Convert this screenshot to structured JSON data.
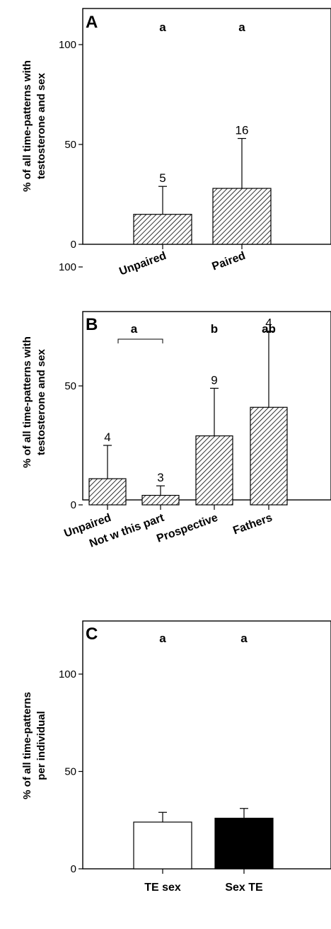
{
  "chart_data": [
    {
      "type": "bar",
      "panel": "A",
      "ylabel_lines": [
        "% of all time-patterns with",
        "testosterone and sex"
      ],
      "ylim": [
        0,
        110
      ],
      "yticks": [
        0,
        50,
        100
      ],
      "categories": [
        "Unpaired",
        "Paired"
      ],
      "values": [
        15,
        28
      ],
      "errors": [
        14,
        25
      ],
      "n_labels": [
        "5",
        "16"
      ],
      "significance": [
        {
          "label": "a",
          "categories": [
            0
          ]
        },
        {
          "label": "a",
          "categories": [
            1
          ]
        }
      ],
      "fill": "hatch"
    },
    {
      "type": "bar",
      "panel": "B",
      "ylabel_lines": [
        "% of all time-patterns with",
        "testosterone and sex"
      ],
      "ylim": [
        0,
        110
      ],
      "yticks": [
        0,
        50,
        100
      ],
      "categories": [
        "Unpaired",
        "Not w this part",
        "Prospective",
        "Fathers"
      ],
      "values": [
        11,
        4,
        29,
        41
      ],
      "errors": [
        14,
        4,
        20,
        32
      ],
      "n_labels": [
        "4",
        "3",
        "9",
        "4"
      ],
      "significance": [
        {
          "label": "a",
          "categories": [
            0,
            1
          ]
        },
        {
          "label": "b",
          "categories": [
            2
          ]
        },
        {
          "label": "ab",
          "categories": [
            3
          ]
        }
      ],
      "fill": "hatch"
    },
    {
      "type": "bar",
      "panel": "C",
      "ylabel_lines": [
        "% of all time-patterns",
        "per individual"
      ],
      "ylim": [
        0,
        110
      ],
      "yticks": [
        0,
        50,
        100
      ],
      "categories": [
        "TE sex",
        "Sex TE"
      ],
      "values": [
        24,
        26
      ],
      "errors": [
        5,
        5
      ],
      "significance": [
        {
          "label": "a",
          "categories": [
            0
          ]
        },
        {
          "label": "a",
          "categories": [
            1
          ]
        }
      ],
      "colors": [
        "#ffffff",
        "#000000"
      ]
    }
  ]
}
